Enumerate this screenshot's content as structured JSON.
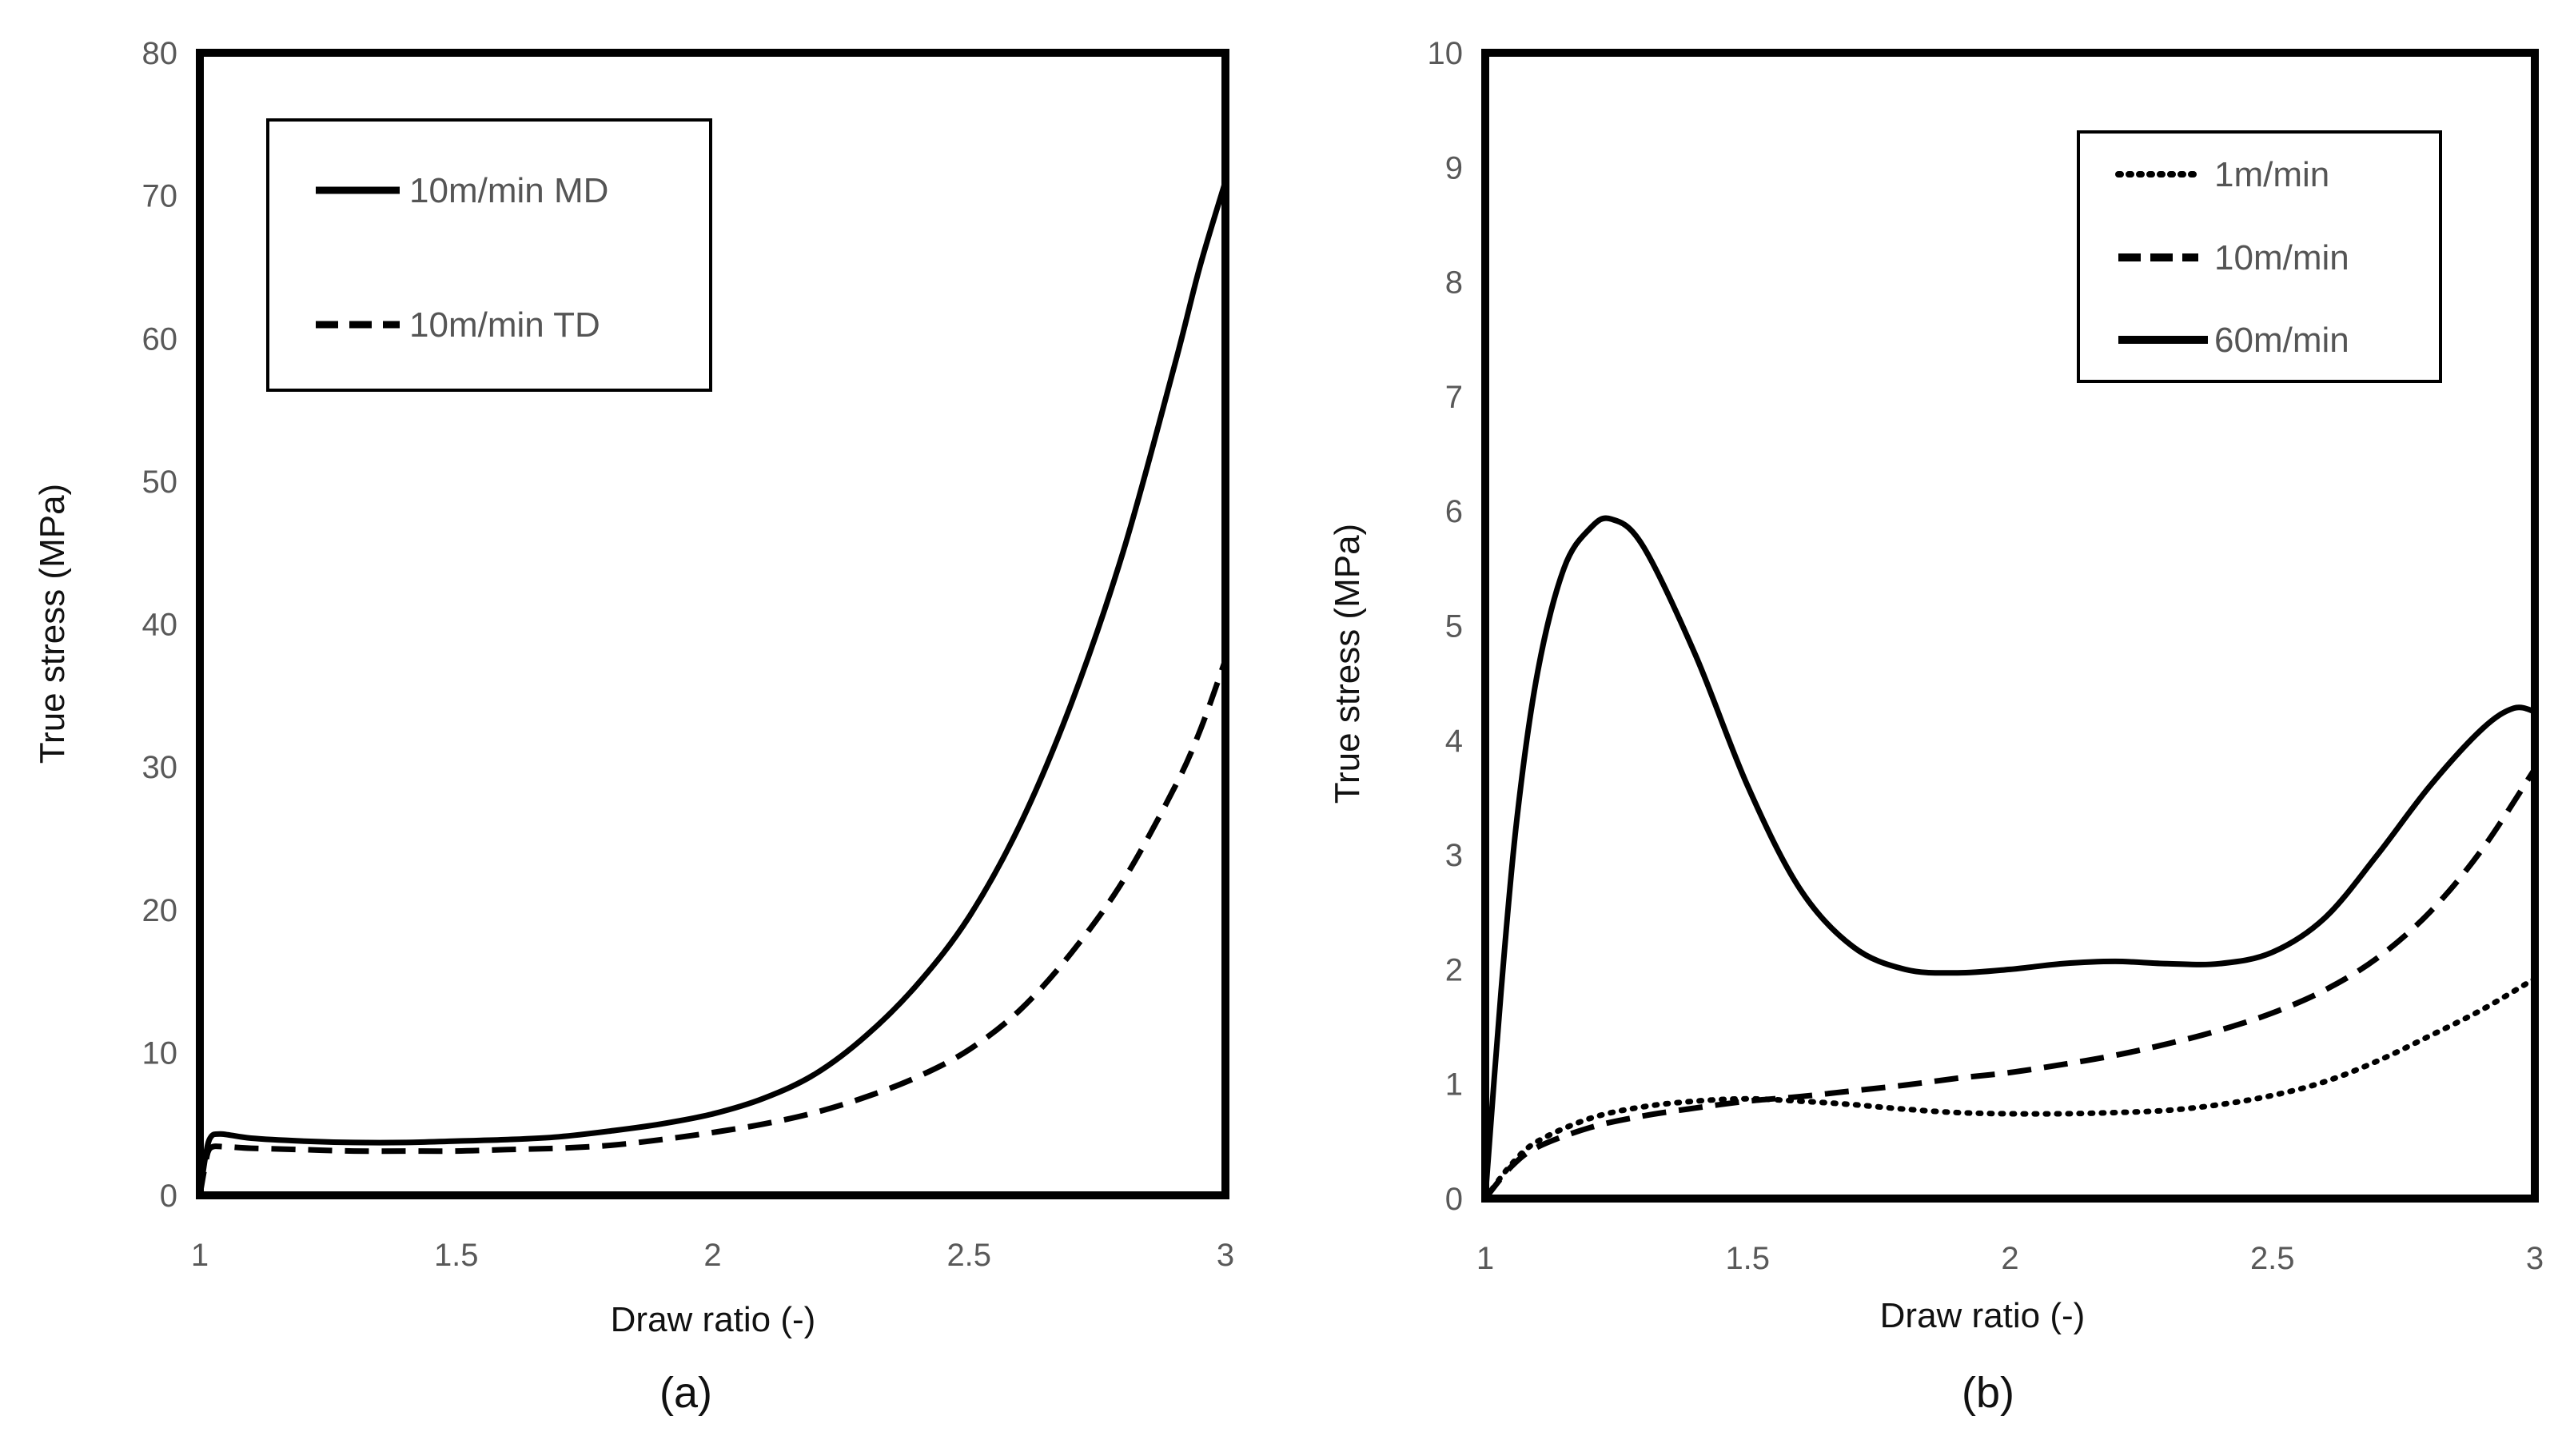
{
  "chart_data": [
    {
      "id": "a",
      "type": "line",
      "panel_label": "(a)",
      "xlabel": "Draw ratio (-)",
      "ylabel": "True stress  (MPa)",
      "xlim": [
        1,
        3
      ],
      "ylim": [
        0,
        80
      ],
      "xticks": [
        1,
        1.5,
        2,
        2.5,
        3
      ],
      "xtick_labels": [
        "1",
        "1.5",
        "2",
        "2.5",
        "3"
      ],
      "yticks": [
        0,
        10,
        20,
        30,
        40,
        50,
        60,
        70,
        80
      ],
      "ytick_labels": [
        "0",
        "10",
        "20",
        "30",
        "40",
        "50",
        "60",
        "70",
        "80"
      ],
      "grid": false,
      "legend_position": "top-left",
      "series": [
        {
          "name": "10m/min MD",
          "style": "solid",
          "color": "#000000",
          "x": [
            1.0,
            1.01,
            1.02,
            1.04,
            1.1,
            1.2,
            1.3,
            1.4,
            1.5,
            1.6,
            1.7,
            1.8,
            1.9,
            2.0,
            2.1,
            2.2,
            2.3,
            2.4,
            2.5,
            2.6,
            2.7,
            2.8,
            2.9,
            2.95,
            3.0
          ],
          "y": [
            0,
            2.5,
            4.0,
            4.3,
            4.0,
            3.8,
            3.7,
            3.7,
            3.8,
            3.9,
            4.1,
            4.5,
            5.0,
            5.7,
            6.8,
            8.5,
            11.2,
            14.8,
            19.5,
            26.0,
            34.5,
            45.0,
            58.0,
            65.0,
            71.0
          ]
        },
        {
          "name": "10m/min TD",
          "style": "dashed",
          "color": "#000000",
          "x": [
            1.0,
            1.01,
            1.02,
            1.05,
            1.1,
            1.2,
            1.3,
            1.4,
            1.5,
            1.6,
            1.7,
            1.8,
            1.9,
            2.0,
            2.1,
            2.2,
            2.3,
            2.4,
            2.5,
            2.6,
            2.7,
            2.8,
            2.9,
            2.95,
            3.0
          ],
          "y": [
            0,
            2.0,
            3.3,
            3.4,
            3.3,
            3.2,
            3.1,
            3.1,
            3.1,
            3.2,
            3.3,
            3.5,
            3.9,
            4.4,
            5.0,
            5.8,
            6.9,
            8.3,
            10.2,
            13.0,
            17.0,
            22.0,
            28.5,
            32.5,
            37.5
          ]
        }
      ]
    },
    {
      "id": "b",
      "type": "line",
      "panel_label": "(b)",
      "xlabel": "Draw ratio (-)",
      "ylabel": "True stress (MPa)",
      "xlim": [
        1,
        3
      ],
      "ylim": [
        0,
        10
      ],
      "xticks": [
        1,
        1.5,
        2,
        2.5,
        3
      ],
      "xtick_labels": [
        "1",
        "1.5",
        "2",
        "2.5",
        "3"
      ],
      "yticks": [
        0,
        1,
        2,
        3,
        4,
        5,
        6,
        7,
        8,
        9,
        10
      ],
      "ytick_labels": [
        "0",
        "1",
        "2",
        "3",
        "4",
        "5",
        "6",
        "7",
        "8",
        "9",
        "10"
      ],
      "grid": false,
      "legend_position": "top-right",
      "series": [
        {
          "name": "1m/min",
          "style": "dotted",
          "color": "#000000",
          "x": [
            1.0,
            1.05,
            1.1,
            1.2,
            1.3,
            1.4,
            1.5,
            1.6,
            1.7,
            1.8,
            1.9,
            2.0,
            2.1,
            2.2,
            2.3,
            2.4,
            2.5,
            2.6,
            2.7,
            2.8,
            2.9,
            3.0
          ],
          "y": [
            0,
            0.3,
            0.5,
            0.7,
            0.8,
            0.85,
            0.87,
            0.85,
            0.82,
            0.78,
            0.75,
            0.74,
            0.74,
            0.75,
            0.77,
            0.82,
            0.9,
            1.02,
            1.2,
            1.42,
            1.65,
            1.92
          ]
        },
        {
          "name": "10m/min",
          "style": "dashed",
          "color": "#000000",
          "x": [
            1.0,
            1.05,
            1.1,
            1.2,
            1.3,
            1.4,
            1.5,
            1.6,
            1.7,
            1.8,
            1.9,
            2.0,
            2.1,
            2.2,
            2.3,
            2.4,
            2.5,
            2.6,
            2.7,
            2.8,
            2.9,
            3.0
          ],
          "y": [
            0,
            0.28,
            0.45,
            0.62,
            0.72,
            0.79,
            0.85,
            0.89,
            0.94,
            0.99,
            1.05,
            1.1,
            1.17,
            1.25,
            1.35,
            1.47,
            1.62,
            1.82,
            2.1,
            2.5,
            3.05,
            3.75
          ]
        },
        {
          "name": "60m/min",
          "style": "solid",
          "color": "#000000",
          "x": [
            1.0,
            1.03,
            1.06,
            1.1,
            1.15,
            1.2,
            1.24,
            1.3,
            1.4,
            1.5,
            1.6,
            1.7,
            1.8,
            1.9,
            2.0,
            2.1,
            2.2,
            2.3,
            2.4,
            2.5,
            2.6,
            2.7,
            2.8,
            2.9,
            2.96,
            3.0
          ],
          "y": [
            0,
            1.8,
            3.3,
            4.6,
            5.5,
            5.85,
            5.93,
            5.7,
            4.75,
            3.6,
            2.7,
            2.2,
            2.0,
            1.97,
            2.0,
            2.05,
            2.07,
            2.05,
            2.05,
            2.15,
            2.45,
            3.0,
            3.6,
            4.1,
            4.28,
            4.25
          ]
        }
      ]
    }
  ]
}
